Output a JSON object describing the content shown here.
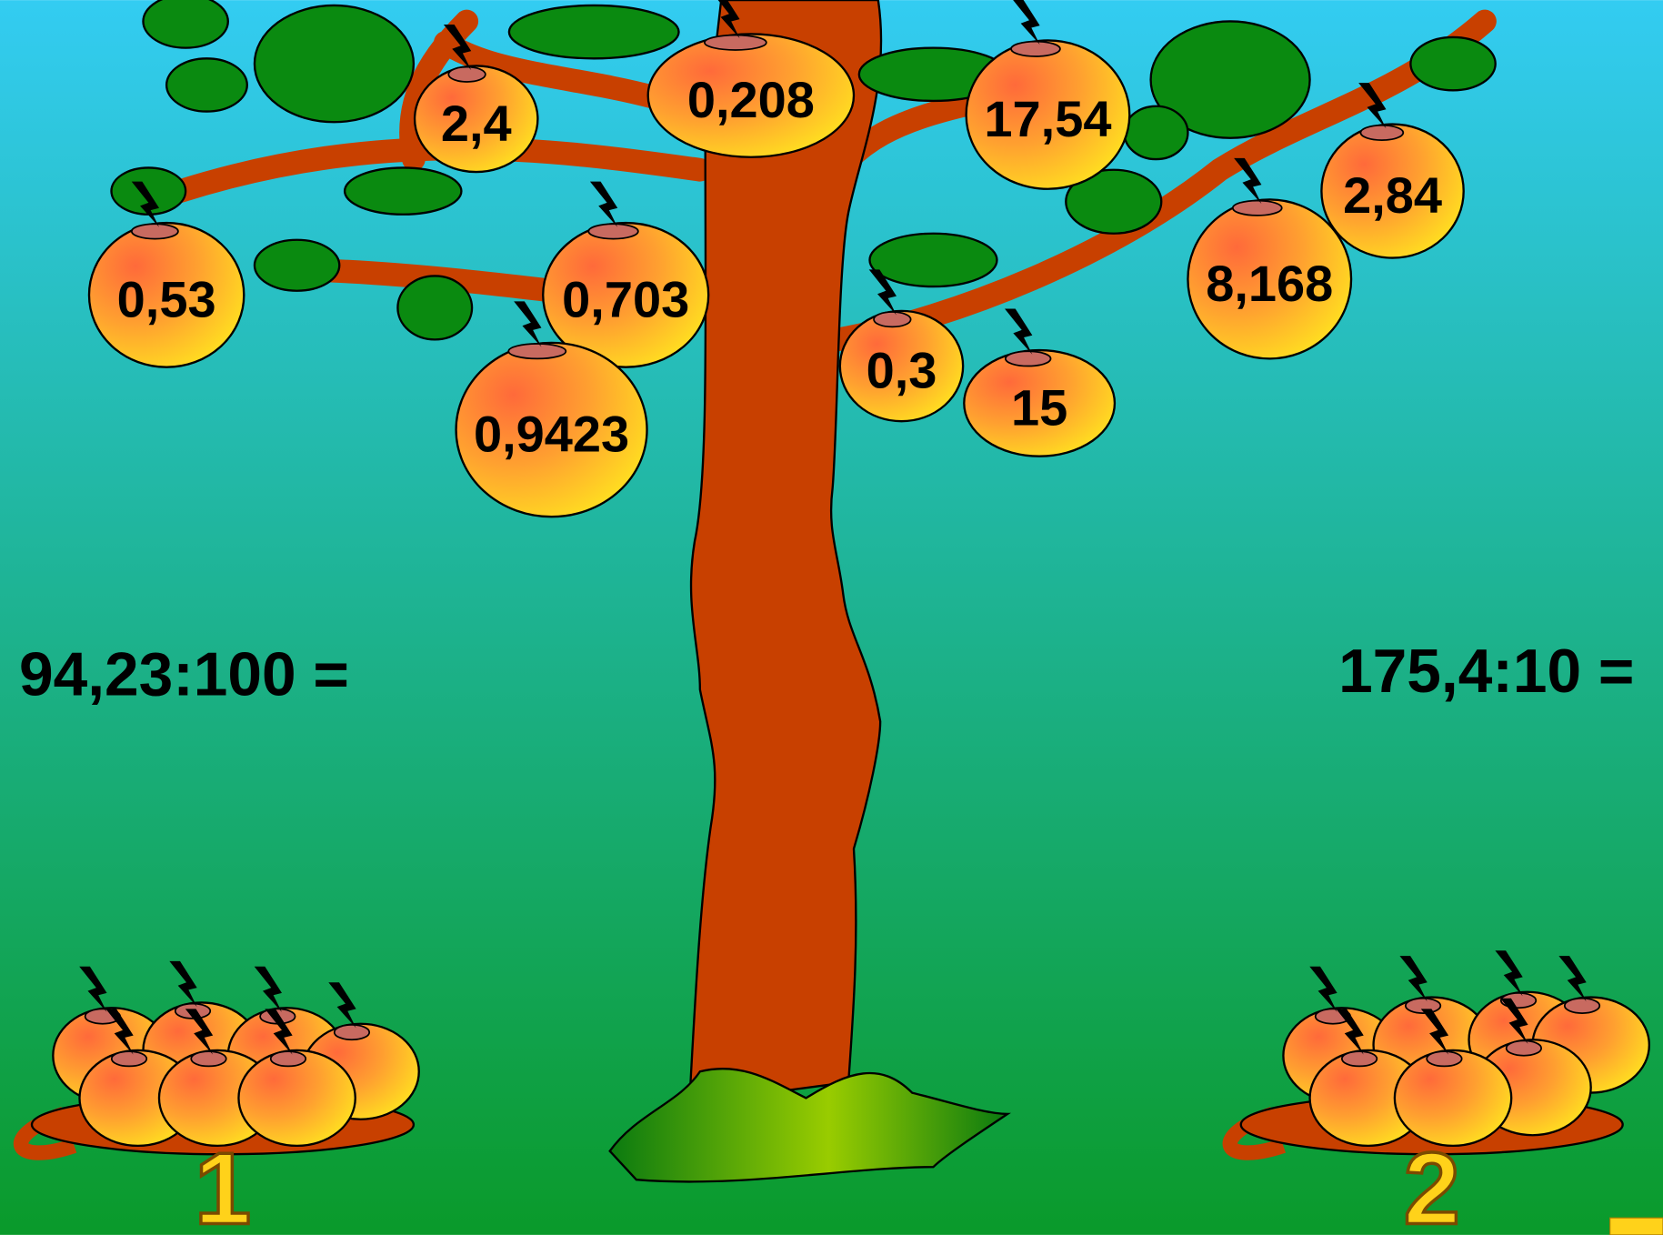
{
  "apples": [
    "0,53",
    "2,4",
    "0,208",
    "17,54",
    "2,84",
    "0,703",
    "0,9423",
    "0,3",
    "15",
    "8,168"
  ],
  "equations": [
    "94,23:100 =",
    "175,4:10 ="
  ],
  "baskets": [
    "1",
    "2"
  ]
}
